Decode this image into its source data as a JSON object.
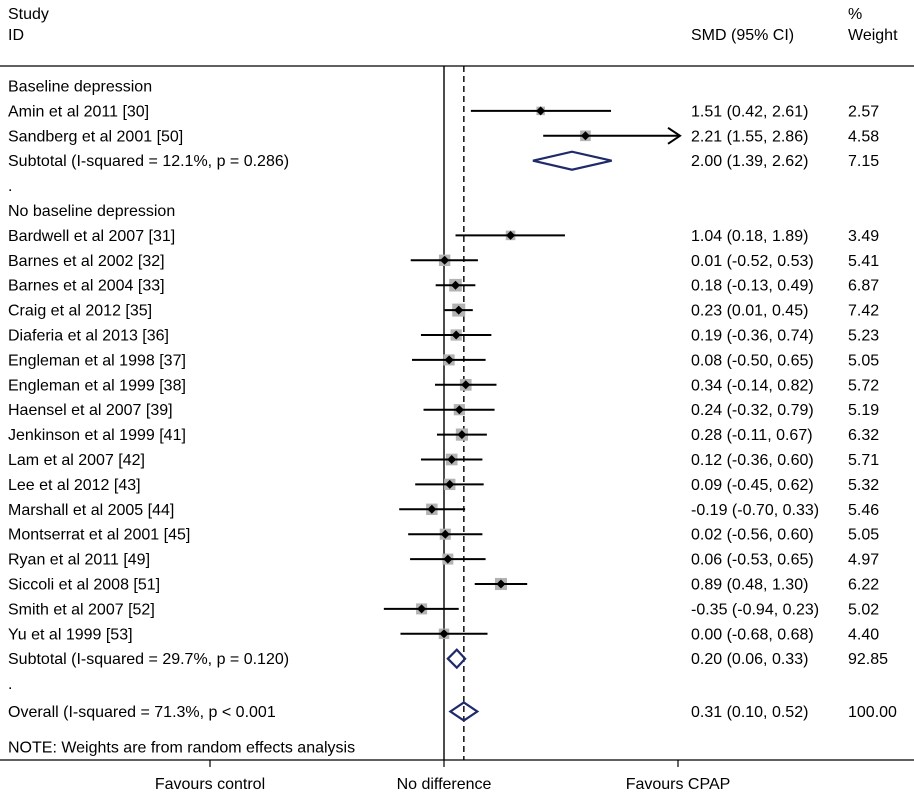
{
  "header": {
    "study_label": "Study",
    "id_label": "ID",
    "effect_label": "SMD (95% CI)",
    "pct_label": "%",
    "weight_label": "Weight"
  },
  "chart_data": {
    "type": "forest",
    "effect_measure": "SMD (95% CI)",
    "null_value": 0,
    "overall_line_value": 0.31,
    "x_axis_labels": [
      "Favours control",
      "No difference",
      "Favours CPAP"
    ],
    "note": "NOTE: Weights are from random effects analysis",
    "rows": [
      {
        "kind": "group",
        "label": "Baseline depression"
      },
      {
        "kind": "study",
        "label": "Amin et al 2011 [30]",
        "est": 1.51,
        "lo": 0.42,
        "hi": 2.61,
        "ci_text": "1.51 (0.42, 2.61)",
        "weight": 2.57,
        "weight_text": "2.57"
      },
      {
        "kind": "study",
        "label": "Sandberg et al 2001 [50]",
        "est": 2.21,
        "lo": 1.55,
        "hi": 2.86,
        "ci_text": "2.21 (1.55, 2.86)",
        "weight": 4.58,
        "weight_text": "4.58",
        "arrow_right": true
      },
      {
        "kind": "subtotal",
        "label": "Subtotal  (I-squared = 12.1%, p = 0.286)",
        "est": 2.0,
        "lo": 1.39,
        "hi": 2.62,
        "ci_text": "2.00 (1.39, 2.62)",
        "weight": 7.15,
        "weight_text": "7.15"
      },
      {
        "kind": "dot",
        "label": "."
      },
      {
        "kind": "group",
        "label": "No baseline depression"
      },
      {
        "kind": "study",
        "label": "Bardwell et al 2007 [31]",
        "est": 1.04,
        "lo": 0.18,
        "hi": 1.89,
        "ci_text": "1.04 (0.18, 1.89)",
        "weight": 3.49,
        "weight_text": "3.49"
      },
      {
        "kind": "study",
        "label": "Barnes et al 2002 [32]",
        "est": 0.01,
        "lo": -0.52,
        "hi": 0.53,
        "ci_text": "0.01 (-0.52, 0.53)",
        "weight": 5.41,
        "weight_text": "5.41"
      },
      {
        "kind": "study",
        "label": "Barnes et al 2004 [33]",
        "est": 0.18,
        "lo": -0.13,
        "hi": 0.49,
        "ci_text": "0.18 (-0.13, 0.49)",
        "weight": 6.87,
        "weight_text": "6.87"
      },
      {
        "kind": "study",
        "label": "Craig et al 2012 [35]",
        "est": 0.23,
        "lo": 0.01,
        "hi": 0.45,
        "ci_text": "0.23 (0.01, 0.45)",
        "weight": 7.42,
        "weight_text": "7.42"
      },
      {
        "kind": "study",
        "label": "Diaferia et al 2013 [36]",
        "est": 0.19,
        "lo": -0.36,
        "hi": 0.74,
        "ci_text": "0.19 (-0.36, 0.74)",
        "weight": 5.23,
        "weight_text": "5.23"
      },
      {
        "kind": "study",
        "label": "Engleman et al 1998 [37]",
        "est": 0.08,
        "lo": -0.5,
        "hi": 0.65,
        "ci_text": "0.08 (-0.50, 0.65)",
        "weight": 5.05,
        "weight_text": "5.05"
      },
      {
        "kind": "study",
        "label": "Engleman et al 1999 [38]",
        "est": 0.34,
        "lo": -0.14,
        "hi": 0.82,
        "ci_text": "0.34 (-0.14, 0.82)",
        "weight": 5.72,
        "weight_text": "5.72"
      },
      {
        "kind": "study",
        "label": "Haensel et al 2007 [39]",
        "est": 0.24,
        "lo": -0.32,
        "hi": 0.79,
        "ci_text": "0.24 (-0.32, 0.79)",
        "weight": 5.19,
        "weight_text": "5.19"
      },
      {
        "kind": "study",
        "label": "Jenkinson et al 1999 [41]",
        "est": 0.28,
        "lo": -0.11,
        "hi": 0.67,
        "ci_text": "0.28 (-0.11, 0.67)",
        "weight": 6.32,
        "weight_text": "6.32"
      },
      {
        "kind": "study",
        "label": "Lam et al 2007 [42]",
        "est": 0.12,
        "lo": -0.36,
        "hi": 0.6,
        "ci_text": "0.12 (-0.36, 0.60)",
        "weight": 5.71,
        "weight_text": "5.71"
      },
      {
        "kind": "study",
        "label": "Lee et al 2012 [43]",
        "est": 0.09,
        "lo": -0.45,
        "hi": 0.62,
        "ci_text": "0.09 (-0.45, 0.62)",
        "weight": 5.32,
        "weight_text": "5.32"
      },
      {
        "kind": "study",
        "label": "Marshall et al 2005 [44]",
        "est": -0.19,
        "lo": -0.7,
        "hi": 0.33,
        "ci_text": "-0.19 (-0.70, 0.33)",
        "weight": 5.46,
        "weight_text": "5.46"
      },
      {
        "kind": "study",
        "label": "Montserrat et al 2001 [45]",
        "est": 0.02,
        "lo": -0.56,
        "hi": 0.6,
        "ci_text": "0.02 (-0.56, 0.60)",
        "weight": 5.05,
        "weight_text": "5.05"
      },
      {
        "kind": "study",
        "label": "Ryan et al 2011 [49]",
        "est": 0.06,
        "lo": -0.53,
        "hi": 0.65,
        "ci_text": "0.06 (-0.53, 0.65)",
        "weight": 4.97,
        "weight_text": "4.97"
      },
      {
        "kind": "study",
        "label": "Siccoli et al 2008 [51]",
        "est": 0.89,
        "lo": 0.48,
        "hi": 1.3,
        "ci_text": "0.89 (0.48, 1.30)",
        "weight": 6.22,
        "weight_text": "6.22"
      },
      {
        "kind": "study",
        "label": "Smith et al 2007 [52]",
        "est": -0.35,
        "lo": -0.94,
        "hi": 0.23,
        "ci_text": "-0.35 (-0.94, 0.23)",
        "weight": 5.02,
        "weight_text": "5.02"
      },
      {
        "kind": "study",
        "label": "Yu et al 1999 [53]",
        "est": 0.0,
        "lo": -0.68,
        "hi": 0.68,
        "ci_text": "0.00 (-0.68, 0.68)",
        "weight": 4.4,
        "weight_text": "4.40"
      },
      {
        "kind": "subtotal",
        "label": "Subtotal  (I-squared = 29.7%, p = 0.120)",
        "est": 0.2,
        "lo": 0.06,
        "hi": 0.33,
        "ci_text": "0.20 (0.06, 0.33)",
        "weight": 92.85,
        "weight_text": "92.85"
      },
      {
        "kind": "dot",
        "label": "."
      },
      {
        "kind": "overall",
        "label": "Overall  (I-squared = 71.3%, p < 0.001",
        "est": 0.31,
        "lo": 0.1,
        "hi": 0.52,
        "ci_text": "0.31 (0.10, 0.52)",
        "weight": 100.0,
        "weight_text": "100.00"
      }
    ],
    "colors": {
      "diamond": "#1f2a6b",
      "weight_box": "#b3b3b3",
      "point": "#000000",
      "lines": "#000000"
    }
  }
}
